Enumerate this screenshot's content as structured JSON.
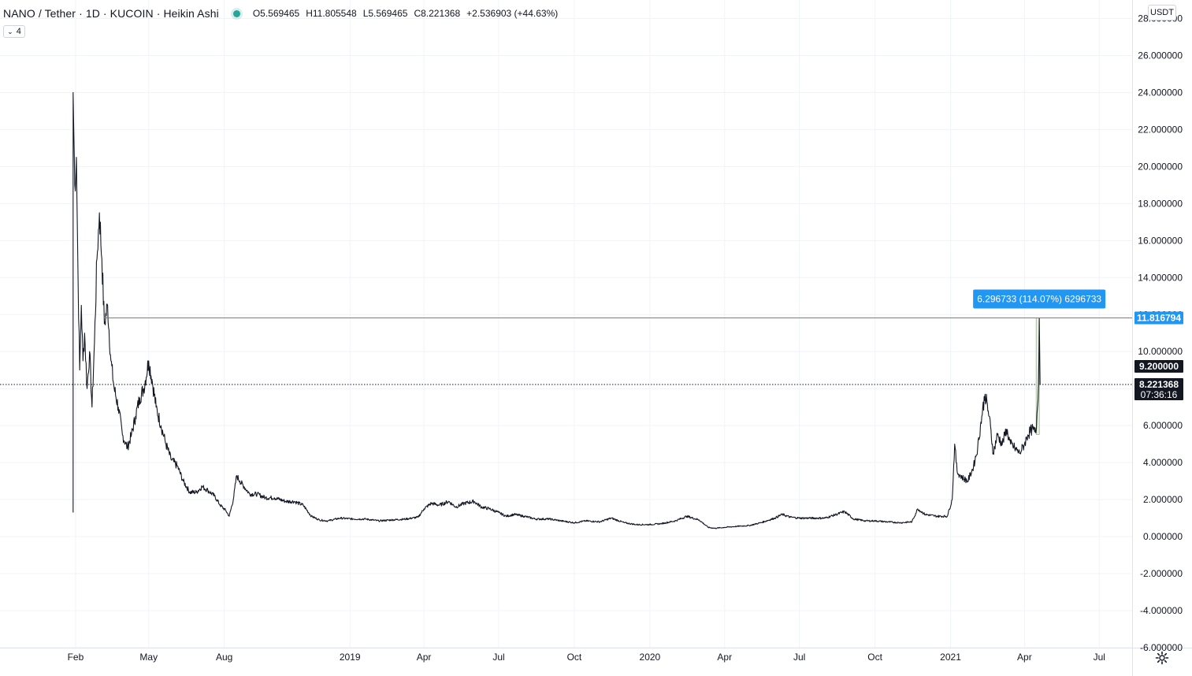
{
  "header": {
    "symbol": "NANO / Tether · 1D · KUCOIN · Heikin Ashi",
    "open": "O5.569465",
    "high": "H11.805548",
    "low": "L5.569465",
    "close": "C8.221368",
    "change": "+2.536903 (+44.63%)",
    "collapse_label": "4",
    "currency": "USDT"
  },
  "colors": {
    "price_line": "#131722",
    "grid": "#f0f3fa",
    "accent": "#2196f3",
    "horizontal_line": "#2a9cb8",
    "label_dark": "#131722",
    "measure_fill": "#e8f3e1",
    "status_dot": "#26a69a"
  },
  "chart_data": {
    "type": "line",
    "ylim": [
      -6,
      29
    ],
    "y_ticks": [
      28,
      26,
      24,
      22,
      20,
      18,
      16,
      14,
      12,
      10,
      8,
      6,
      4,
      2,
      0,
      -2,
      -4,
      -6
    ],
    "y_tick_labels": [
      "28.000000",
      "26.000000",
      "24.000000",
      "22.000000",
      "20.000000",
      "18.000000",
      "16.000000",
      "14.000000",
      "12.000000",
      "10.000000",
      "8.000000",
      "6.000000",
      "4.000000",
      "2.000000",
      "0.000000",
      "-2.000000",
      "-4.000000",
      "-6.000000"
    ],
    "xlim": [
      "2017-11-01",
      "2021-08-10"
    ],
    "x_ticks": [
      {
        "date": "2018-02-01",
        "label": "Feb"
      },
      {
        "date": "2018-05-01",
        "label": "May"
      },
      {
        "date": "2018-08-01",
        "label": "Aug"
      },
      {
        "date": "2019-01-01",
        "label": "2019"
      },
      {
        "date": "2019-04-01",
        "label": "Apr"
      },
      {
        "date": "2019-07-01",
        "label": "Jul"
      },
      {
        "date": "2019-10-01",
        "label": "Oct"
      },
      {
        "date": "2020-01-01",
        "label": "2020"
      },
      {
        "date": "2020-04-01",
        "label": "Apr"
      },
      {
        "date": "2020-07-01",
        "label": "Jul"
      },
      {
        "date": "2020-10-01",
        "label": "Oct"
      },
      {
        "date": "2021-01-01",
        "label": "2021"
      },
      {
        "date": "2021-04-01",
        "label": "Apr"
      },
      {
        "date": "2021-07-01",
        "label": "Jul"
      }
    ],
    "series": [
      {
        "points": [
          [
            "2018-01-29",
            1.3
          ],
          [
            "2018-01-29",
            24.0
          ],
          [
            "2018-01-30",
            21.5
          ],
          [
            "2018-01-31",
            19.0
          ],
          [
            "2018-02-02",
            20.5
          ],
          [
            "2018-02-04",
            14.0
          ],
          [
            "2018-02-06",
            9.0
          ],
          [
            "2018-02-08",
            12.5
          ],
          [
            "2018-02-10",
            9.5
          ],
          [
            "2018-02-12",
            11.0
          ],
          [
            "2018-02-15",
            8.0
          ],
          [
            "2018-02-18",
            10.0
          ],
          [
            "2018-02-21",
            7.0
          ],
          [
            "2018-02-24",
            10.5
          ],
          [
            "2018-02-27",
            15.0
          ],
          [
            "2018-03-02",
            17.5
          ],
          [
            "2018-03-05",
            15.0
          ],
          [
            "2018-03-08",
            11.5
          ],
          [
            "2018-03-12",
            12.5
          ],
          [
            "2018-03-16",
            9.5
          ],
          [
            "2018-03-20",
            8.0
          ],
          [
            "2018-03-25",
            7.0
          ],
          [
            "2018-03-30",
            5.5
          ],
          [
            "2018-04-05",
            4.8
          ],
          [
            "2018-04-10",
            5.5
          ],
          [
            "2018-04-15",
            6.5
          ],
          [
            "2018-04-20",
            7.5
          ],
          [
            "2018-04-25",
            8.0
          ],
          [
            "2018-05-01",
            9.5
          ],
          [
            "2018-05-05",
            8.5
          ],
          [
            "2018-05-10",
            7.0
          ],
          [
            "2018-05-16",
            6.0
          ],
          [
            "2018-05-22",
            5.0
          ],
          [
            "2018-05-28",
            4.2
          ],
          [
            "2018-06-05",
            3.8
          ],
          [
            "2018-06-12",
            3.0
          ],
          [
            "2018-06-20",
            2.4
          ],
          [
            "2018-06-28",
            2.4
          ],
          [
            "2018-07-05",
            2.7
          ],
          [
            "2018-07-12",
            2.5
          ],
          [
            "2018-07-20",
            2.2
          ],
          [
            "2018-07-27",
            1.7
          ],
          [
            "2018-08-03",
            1.4
          ],
          [
            "2018-08-07",
            1.1
          ],
          [
            "2018-08-12",
            2.0
          ],
          [
            "2018-08-16",
            3.3
          ],
          [
            "2018-08-20",
            3.0
          ],
          [
            "2018-08-25",
            2.7
          ],
          [
            "2018-09-01",
            2.3
          ],
          [
            "2018-09-10",
            2.3
          ],
          [
            "2018-09-20",
            2.1
          ],
          [
            "2018-10-01",
            2.1
          ],
          [
            "2018-10-15",
            1.9
          ],
          [
            "2018-10-25",
            1.9
          ],
          [
            "2018-11-05",
            1.7
          ],
          [
            "2018-11-15",
            1.1
          ],
          [
            "2018-11-25",
            0.9
          ],
          [
            "2018-12-05",
            0.85
          ],
          [
            "2018-12-20",
            1.0
          ],
          [
            "2019-01-05",
            0.95
          ],
          [
            "2019-01-20",
            0.95
          ],
          [
            "2019-02-05",
            0.85
          ],
          [
            "2019-02-20",
            0.9
          ],
          [
            "2019-03-10",
            0.95
          ],
          [
            "2019-03-25",
            1.05
          ],
          [
            "2019-04-01",
            1.5
          ],
          [
            "2019-04-10",
            1.8
          ],
          [
            "2019-04-20",
            1.7
          ],
          [
            "2019-05-01",
            1.9
          ],
          [
            "2019-05-10",
            1.6
          ],
          [
            "2019-05-20",
            1.8
          ],
          [
            "2019-06-01",
            1.9
          ],
          [
            "2019-06-10",
            1.6
          ],
          [
            "2019-06-20",
            1.5
          ],
          [
            "2019-07-01",
            1.3
          ],
          [
            "2019-07-10",
            1.1
          ],
          [
            "2019-07-20",
            1.2
          ],
          [
            "2019-08-01",
            1.1
          ],
          [
            "2019-08-15",
            0.95
          ],
          [
            "2019-09-01",
            0.95
          ],
          [
            "2019-09-15",
            0.85
          ],
          [
            "2019-10-01",
            0.75
          ],
          [
            "2019-10-15",
            0.85
          ],
          [
            "2019-11-01",
            0.8
          ],
          [
            "2019-11-15",
            1.0
          ],
          [
            "2019-12-01",
            0.75
          ],
          [
            "2019-12-15",
            0.65
          ],
          [
            "2020-01-01",
            0.65
          ],
          [
            "2020-01-15",
            0.7
          ],
          [
            "2020-02-01",
            0.85
          ],
          [
            "2020-02-15",
            1.1
          ],
          [
            "2020-03-01",
            0.9
          ],
          [
            "2020-03-12",
            0.5
          ],
          [
            "2020-03-20",
            0.45
          ],
          [
            "2020-04-01",
            0.5
          ],
          [
            "2020-04-15",
            0.55
          ],
          [
            "2020-05-01",
            0.6
          ],
          [
            "2020-05-15",
            0.75
          ],
          [
            "2020-06-01",
            1.0
          ],
          [
            "2020-06-10",
            1.2
          ],
          [
            "2020-06-20",
            1.05
          ],
          [
            "2020-07-01",
            1.0
          ],
          [
            "2020-07-15",
            1.0
          ],
          [
            "2020-08-01",
            1.0
          ],
          [
            "2020-08-15",
            1.2
          ],
          [
            "2020-08-25",
            1.35
          ],
          [
            "2020-09-05",
            0.95
          ],
          [
            "2020-09-20",
            0.85
          ],
          [
            "2020-10-01",
            0.85
          ],
          [
            "2020-10-15",
            0.8
          ],
          [
            "2020-11-01",
            0.75
          ],
          [
            "2020-11-15",
            0.8
          ],
          [
            "2020-11-22",
            1.5
          ],
          [
            "2020-12-01",
            1.2
          ],
          [
            "2020-12-15",
            1.1
          ],
          [
            "2020-12-28",
            1.1
          ],
          [
            "2021-01-03",
            2.0
          ],
          [
            "2021-01-06",
            5.0
          ],
          [
            "2021-01-09",
            3.5
          ],
          [
            "2021-01-15",
            3.2
          ],
          [
            "2021-01-22",
            3.0
          ],
          [
            "2021-01-29",
            3.8
          ],
          [
            "2021-02-03",
            4.8
          ],
          [
            "2021-02-08",
            6.5
          ],
          [
            "2021-02-12",
            7.7
          ],
          [
            "2021-02-17",
            6.5
          ],
          [
            "2021-02-22",
            4.5
          ],
          [
            "2021-02-27",
            5.5
          ],
          [
            "2021-03-05",
            5.0
          ],
          [
            "2021-03-10",
            5.8
          ],
          [
            "2021-03-15",
            5.0
          ],
          [
            "2021-03-20",
            4.8
          ],
          [
            "2021-03-26",
            4.5
          ],
          [
            "2021-04-01",
            5.0
          ],
          [
            "2021-04-05",
            5.5
          ],
          [
            "2021-04-10",
            5.8
          ],
          [
            "2021-04-15",
            5.6
          ],
          [
            "2021-04-18",
            8.2
          ],
          [
            "2021-04-19",
            11.8
          ],
          [
            "2021-04-20",
            8.2
          ]
        ]
      }
    ],
    "price_labels": [
      {
        "value": 11.816794,
        "label": "11.816794",
        "style": "blue"
      },
      {
        "value": 9.2,
        "label": "9.200000",
        "style": "dark"
      },
      {
        "value": 8.221368,
        "label": "8.221368",
        "sublabel": "07:36:16",
        "style": "dark"
      }
    ],
    "horizontal_line": {
      "value": 11.816794,
      "from_date": "2018-03-07"
    },
    "last_price_line": 8.221368,
    "measure": {
      "date": "2021-04-19",
      "from_value": 5.52,
      "to_value": 11.816794,
      "label": "6.296733 (114.07%) 6296733"
    }
  }
}
